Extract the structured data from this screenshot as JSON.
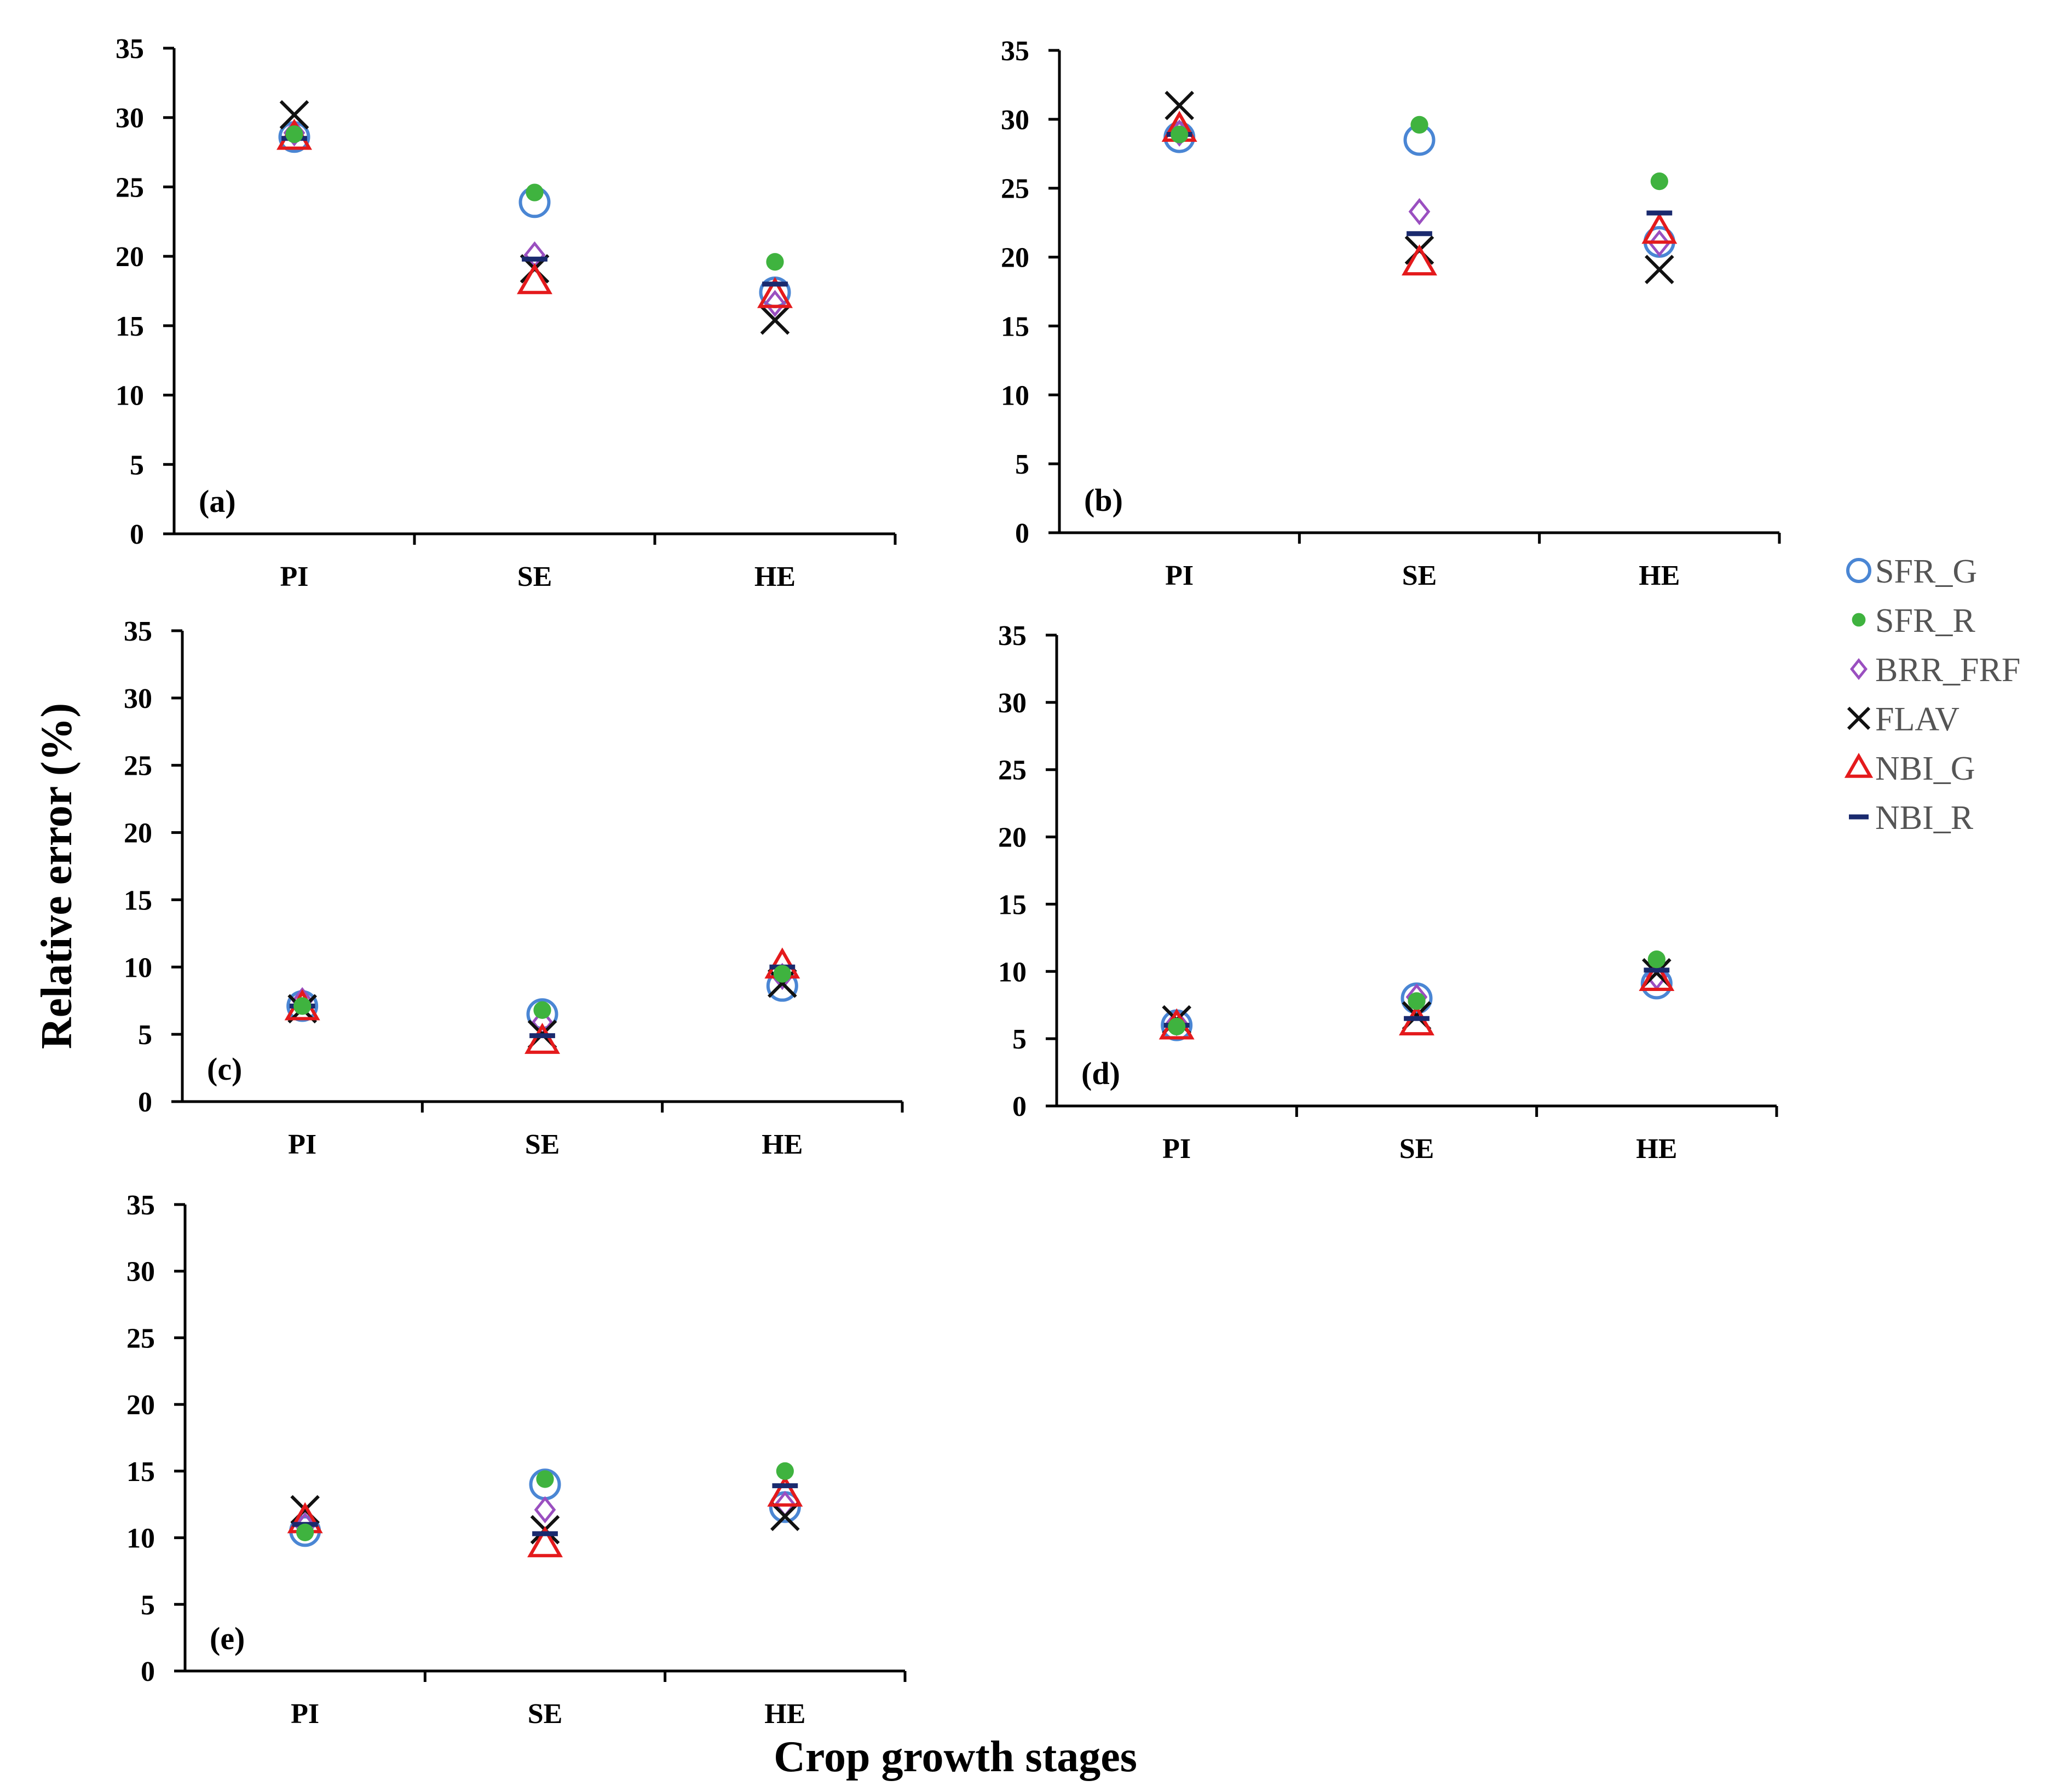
{
  "chart_data": {
    "type": "scatter",
    "xlabel": "Crop growth stages",
    "ylabel": "Relative error (%)",
    "categories": [
      "PI",
      "SE",
      "HE"
    ],
    "ylim": [
      0,
      35
    ],
    "yticks": [
      0,
      5,
      10,
      15,
      20,
      25,
      30,
      35
    ],
    "legend": [
      {
        "name": "SFR_G",
        "marker": "open-circle",
        "color": "#4a86d4"
      },
      {
        "name": "SFR_R",
        "marker": "filled-circle",
        "color": "#3fb33f"
      },
      {
        "name": "BRR_FRF",
        "marker": "open-diamond",
        "color": "#9a4fc0"
      },
      {
        "name": "FLAV",
        "marker": "x",
        "color": "#111111"
      },
      {
        "name": "NBI_G",
        "marker": "open-triangle",
        "color": "#e41a1c"
      },
      {
        "name": "NBI_R",
        "marker": "dash",
        "color": "#1a2a6e"
      }
    ],
    "panels": [
      {
        "label": "(a)",
        "series": {
          "SFR_G": [
            28.6,
            23.9,
            17.4
          ],
          "SFR_R": [
            28.8,
            24.6,
            19.6
          ],
          "BRR_FRF": [
            28.9,
            20.1,
            16.6
          ],
          "FLAV": [
            30.2,
            19.1,
            15.4
          ],
          "NBI_G": [
            28.6,
            18.2,
            17.2
          ],
          "NBI_R": [
            28.5,
            19.8,
            18.0
          ]
        }
      },
      {
        "label": "(b)",
        "series": {
          "SFR_G": [
            28.7,
            28.5,
            21.1
          ],
          "SFR_R": [
            28.9,
            29.6,
            25.5
          ],
          "BRR_FRF": [
            29.0,
            23.3,
            21.0
          ],
          "FLAV": [
            31.0,
            20.5,
            19.1
          ],
          "NBI_G": [
            29.3,
            19.6,
            21.9
          ],
          "NBI_R": [
            28.9,
            21.7,
            23.2
          ]
        }
      },
      {
        "label": "(c)",
        "series": {
          "SFR_G": [
            7.1,
            6.5,
            8.6
          ],
          "SFR_R": [
            7.1,
            6.8,
            9.5
          ],
          "BRR_FRF": [
            7.5,
            5.9,
            9.3
          ],
          "FLAV": [
            6.9,
            5.0,
            8.8
          ],
          "NBI_G": [
            7.0,
            4.5,
            10.1
          ],
          "NBI_R": [
            7.1,
            4.9,
            10.0
          ]
        }
      },
      {
        "label": "(d)",
        "series": {
          "SFR_G": [
            6.0,
            8.0,
            9.1
          ],
          "SFR_R": [
            5.9,
            7.8,
            10.9
          ],
          "BRR_FRF": [
            6.2,
            8.1,
            9.6
          ],
          "FLAV": [
            6.4,
            6.7,
            9.9
          ],
          "NBI_G": [
            5.9,
            6.2,
            9.5
          ],
          "NBI_R": [
            6.0,
            6.5,
            10.1
          ]
        }
      },
      {
        "label": "(e)",
        "series": {
          "SFR_G": [
            10.5,
            14.0,
            12.3
          ],
          "SFR_R": [
            10.4,
            14.4,
            15.0
          ],
          "BRR_FRF": [
            10.9,
            12.1,
            12.5
          ],
          "FLAV": [
            12.1,
            10.6,
            11.6
          ],
          "NBI_G": [
            11.3,
            9.5,
            13.3
          ],
          "NBI_R": [
            11.0,
            10.3,
            13.9
          ]
        }
      }
    ]
  }
}
